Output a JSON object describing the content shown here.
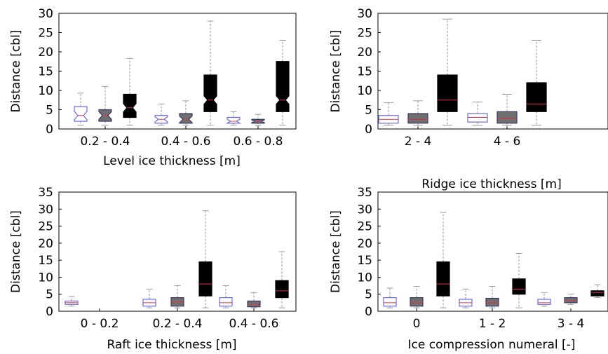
{
  "chart_data": [
    {
      "type": "box",
      "xlabel": "Level ice thickness [m]",
      "ylabel": "Distance [cbl]",
      "ylim": [
        0,
        30
      ],
      "yticks": [
        0,
        5,
        10,
        15,
        20,
        25,
        30
      ],
      "categories": [
        "0.2 - 0.4",
        "0.4 - 0.6",
        "0.6 - 0.8"
      ],
      "series": [
        {
          "style": "white",
          "boxes": [
            {
              "min": 1,
              "q1": 2,
              "median": 3.5,
              "q3": 5.8,
              "max": 9.3
            },
            {
              "min": 1,
              "q1": 1.5,
              "median": 2.5,
              "q3": 3.5,
              "max": 6.5
            },
            {
              "min": 1,
              "q1": 1.5,
              "median": 2,
              "q3": 3,
              "max": 4.5
            }
          ]
        },
        {
          "style": "gray",
          "boxes": [
            {
              "min": 1,
              "q1": 2,
              "median": 3.5,
              "q3": 5,
              "max": 11
            },
            {
              "min": 1,
              "q1": 1.5,
              "median": 2.5,
              "q3": 4,
              "max": 7.3
            },
            {
              "min": 1,
              "q1": 1.5,
              "median": 2,
              "q3": 2.5,
              "max": 3.8
            }
          ]
        },
        {
          "style": "black",
          "boxes": [
            {
              "min": 1,
              "q1": 3,
              "median": 5.5,
              "q3": 9,
              "max": 18.3
            },
            {
              "min": 1,
              "q1": 4.5,
              "median": 7.5,
              "q3": 14,
              "max": 28
            },
            {
              "min": 1,
              "q1": 4.5,
              "median": 7.5,
              "q3": 17.5,
              "max": 23
            }
          ]
        }
      ]
    },
    {
      "type": "box",
      "xlabel": "Ridge ice thickness [m]",
      "ylabel": "Distance [cbl]",
      "ylim": [
        0,
        30
      ],
      "yticks": [
        0,
        5,
        10,
        15,
        20,
        25,
        30
      ],
      "categories": [
        "2 - 4",
        "4 - 6"
      ],
      "series": [
        {
          "style": "white",
          "boxes": [
            {
              "min": 1,
              "q1": 1.5,
              "median": 2.5,
              "q3": 3.5,
              "max": 6.8
            },
            {
              "min": 1,
              "q1": 1.8,
              "median": 3,
              "q3": 4,
              "max": 7
            }
          ]
        },
        {
          "style": "gray",
          "boxes": [
            {
              "min": 1,
              "q1": 1.5,
              "median": 2.5,
              "q3": 4,
              "max": 7.3
            },
            {
              "min": 1,
              "q1": 1.5,
              "median": 2.8,
              "q3": 4.5,
              "max": 9
            }
          ]
        },
        {
          "style": "black",
          "boxes": [
            {
              "min": 1,
              "q1": 4.5,
              "median": 7.5,
              "q3": 14,
              "max": 28.5
            },
            {
              "min": 1,
              "q1": 4.5,
              "median": 6.5,
              "q3": 12,
              "max": 23
            }
          ]
        }
      ]
    },
    {
      "type": "box",
      "xlabel": "Raft ice thickness [m]",
      "ylabel": "Distance [cbl]",
      "ylim": [
        0,
        35
      ],
      "yticks": [
        0,
        5,
        10,
        15,
        20,
        25,
        30,
        35
      ],
      "categories": [
        "0 - 0.2",
        "0.2 - 0.4",
        "0.4 - 0.6"
      ],
      "series": [
        {
          "style": "white",
          "boxes": [
            {
              "min": 1.5,
              "q1": 2,
              "median": 2.5,
              "q3": 3,
              "max": 4.3
            },
            {
              "min": 1,
              "q1": 1.5,
              "median": 2.5,
              "q3": 3.5,
              "max": 6.5
            },
            {
              "min": 1,
              "q1": 1.5,
              "median": 2.5,
              "q3": 4,
              "max": 7.5
            }
          ]
        },
        {
          "style": "gray",
          "boxes": [
            null,
            {
              "min": 1,
              "q1": 1.5,
              "median": 2.8,
              "q3": 4,
              "max": 7.5
            },
            {
              "min": 1,
              "q1": 1.3,
              "median": 2,
              "q3": 3,
              "max": 5.5
            }
          ]
        },
        {
          "style": "black",
          "boxes": [
            null,
            {
              "min": 1,
              "q1": 4.5,
              "median": 8,
              "q3": 14.5,
              "max": 29.5
            },
            {
              "min": 1,
              "q1": 4,
              "median": 6,
              "q3": 9,
              "max": 17.5
            }
          ]
        }
      ]
    },
    {
      "type": "box",
      "xlabel": "Ice compression numeral [-]",
      "ylabel": "Distance [cbl]",
      "ylim": [
        0,
        35
      ],
      "yticks": [
        0,
        5,
        10,
        15,
        20,
        25,
        30,
        35
      ],
      "categories": [
        "0",
        "1 - 2",
        "3 - 4"
      ],
      "series": [
        {
          "style": "white",
          "boxes": [
            {
              "min": 1,
              "q1": 1.5,
              "median": 2.5,
              "q3": 4,
              "max": 6.8
            },
            {
              "min": 1,
              "q1": 1.5,
              "median": 2.5,
              "q3": 3.5,
              "max": 6.5
            },
            {
              "min": 1.5,
              "q1": 2,
              "median": 2.5,
              "q3": 3.5,
              "max": 5.5
            }
          ]
        },
        {
          "style": "gray",
          "boxes": [
            {
              "min": 1,
              "q1": 1.5,
              "median": 2.5,
              "q3": 4,
              "max": 7.3
            },
            {
              "min": 1,
              "q1": 1.5,
              "median": 2.5,
              "q3": 3.8,
              "max": 7.3
            },
            {
              "min": 2,
              "q1": 2.5,
              "median": 3,
              "q3": 4,
              "max": 5
            }
          ]
        },
        {
          "style": "black",
          "boxes": [
            {
              "min": 1,
              "q1": 4.5,
              "median": 8,
              "q3": 14.5,
              "max": 29
            },
            {
              "min": 1,
              "q1": 5,
              "median": 6.5,
              "q3": 9.5,
              "max": 17
            },
            {
              "min": 4,
              "q1": 4.5,
              "median": 5.5,
              "q3": 6,
              "max": 7.8
            }
          ]
        }
      ]
    }
  ],
  "colors": {
    "white_box_edge": "#6a6ae8",
    "gray_box_fill": "#6f6f6f",
    "black_box_fill": "#000000",
    "median": "#e0304a",
    "whisker": "#9a9a9a"
  }
}
